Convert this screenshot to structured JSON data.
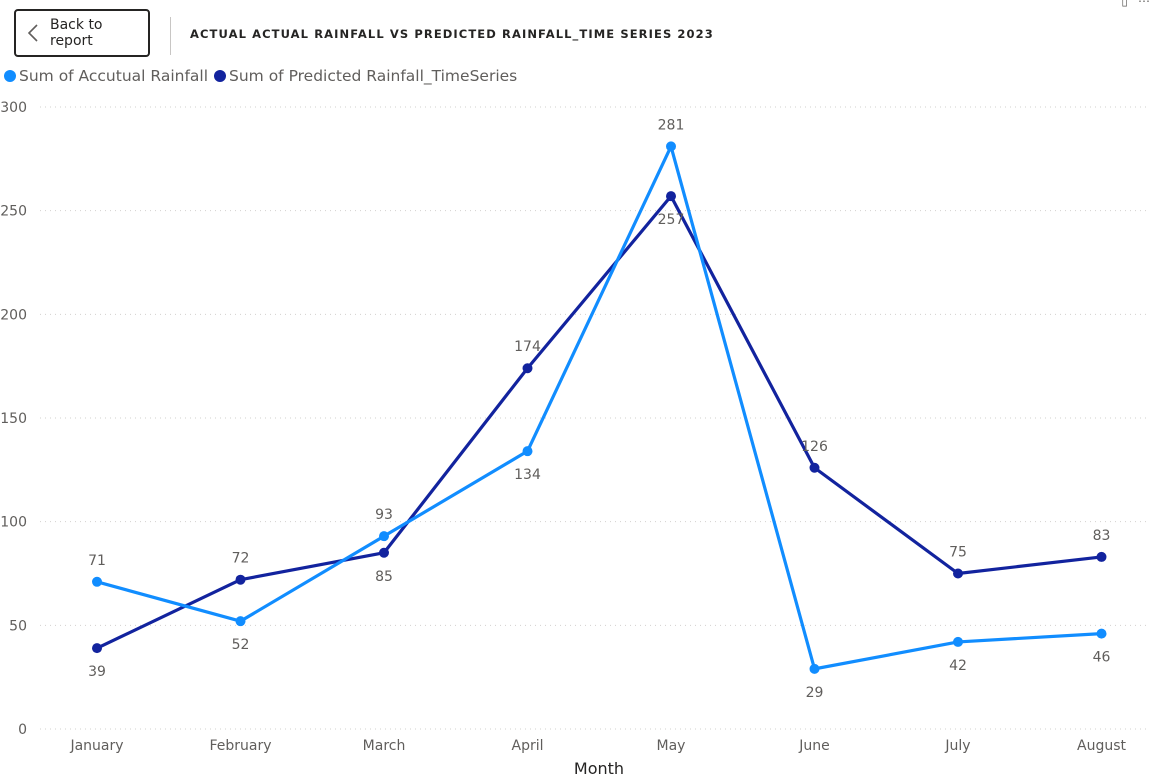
{
  "header": {
    "back_label": "Back to report",
    "title": "ACTUAL ACTUAL RAINFALL VS PREDICTED RAINFALL_TIME SERIES 2023"
  },
  "colors": {
    "actual": "#118DFF",
    "predicted": "#12239E"
  },
  "chart_data": {
    "type": "line",
    "categories": [
      "January",
      "February",
      "March",
      "April",
      "May",
      "June",
      "July",
      "August"
    ],
    "series": [
      {
        "name": "Sum of Accutual Rainfall",
        "values": [
          71,
          52,
          93,
          134,
          281,
          29,
          42,
          46
        ]
      },
      {
        "name": "Sum of Predicted Rainfall_TimeSeries",
        "values": [
          39,
          72,
          85,
          174,
          257,
          126,
          75,
          83
        ]
      }
    ],
    "xlabel": "Month",
    "ylabel": "",
    "ylim": [
      0,
      300
    ],
    "yticks": [
      0,
      50,
      100,
      150,
      200,
      250,
      300
    ],
    "grid": true,
    "legend_position": "top-left"
  }
}
